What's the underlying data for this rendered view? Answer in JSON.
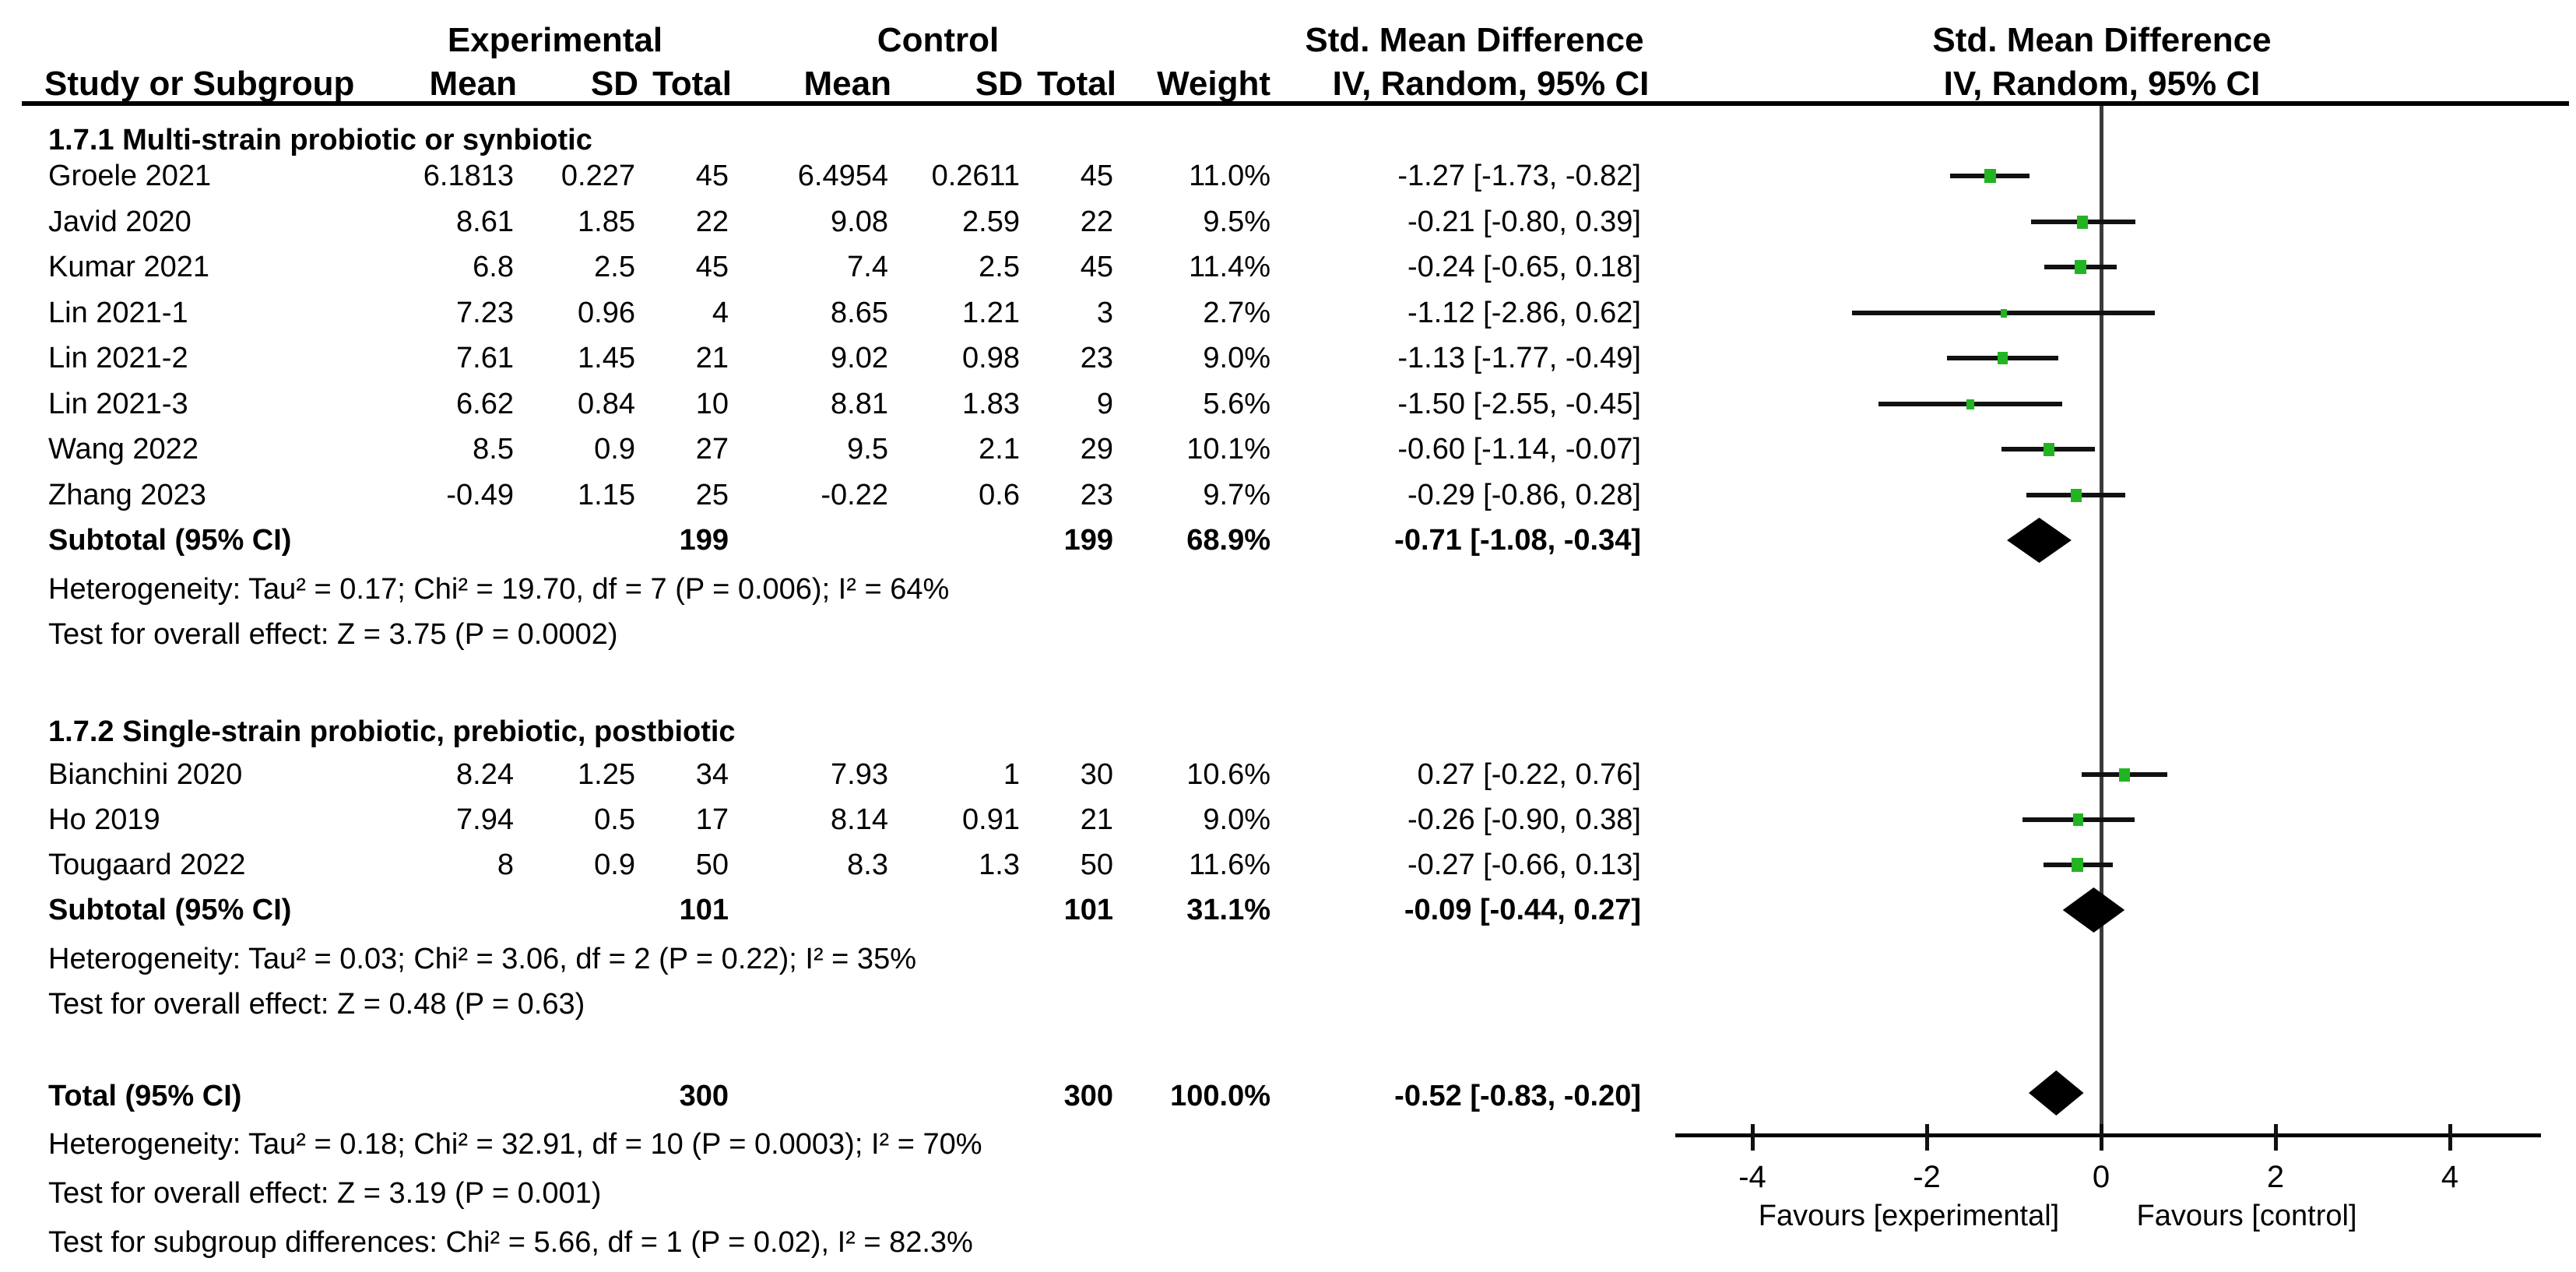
{
  "colors": {
    "background": "#ffffff",
    "text": "#000000",
    "marker_green": "#22b422",
    "diamond_black": "#000000",
    "ci_line": "#111111",
    "zero_line": "#3a3a3a"
  },
  "headers": {
    "experimental": "Experimental",
    "control": "Control",
    "smd_left": "Std. Mean Difference",
    "smd_right": "Std. Mean Difference",
    "study": "Study or Subgroup",
    "mean": "Mean",
    "sd": "SD",
    "total": "Total",
    "mean2": "Mean",
    "sd2": "SD",
    "total2": "Total",
    "weight": "Weight",
    "method_left": "IV, Random, 95% CI",
    "method_right": "IV, Random, 95% CI"
  },
  "chart_data": {
    "type": "forest",
    "effect_measure": "Std. Mean Difference (IV, Random, 95% CI)",
    "xlim": [
      -4.85,
      5.05
    ],
    "axis": {
      "tick_values": [
        -4,
        -2,
        0,
        2,
        4
      ],
      "ticks": [
        "-4",
        "-2",
        "0",
        "2",
        "4"
      ],
      "favours_left": "Favours [experimental]",
      "favours_right": "Favours [control]"
    },
    "groups": [
      {
        "label": "1.7.1 Multi-strain probiotic or synbiotic",
        "studies": [
          {
            "name": "Groele 2021",
            "exp_mean": "6.1813",
            "exp_sd": "0.227",
            "exp_total": "45",
            "ctrl_mean": "6.4954",
            "ctrl_sd": "0.2611",
            "ctrl_total": "45",
            "weight": "11.0%",
            "weight_val": 11.0,
            "ci_text": "-1.27 [-1.73, -0.82]",
            "smd": -1.27,
            "lo": -1.73,
            "hi": -0.82
          },
          {
            "name": "Javid 2020",
            "exp_mean": "8.61",
            "exp_sd": "1.85",
            "exp_total": "22",
            "ctrl_mean": "9.08",
            "ctrl_sd": "2.59",
            "ctrl_total": "22",
            "weight": "9.5%",
            "weight_val": 9.5,
            "ci_text": "-0.21 [-0.80, 0.39]",
            "smd": -0.21,
            "lo": -0.8,
            "hi": 0.39
          },
          {
            "name": "Kumar 2021",
            "exp_mean": "6.8",
            "exp_sd": "2.5",
            "exp_total": "45",
            "ctrl_mean": "7.4",
            "ctrl_sd": "2.5",
            "ctrl_total": "45",
            "weight": "11.4%",
            "weight_val": 11.4,
            "ci_text": "-0.24 [-0.65, 0.18]",
            "smd": -0.24,
            "lo": -0.65,
            "hi": 0.18
          },
          {
            "name": "Lin 2021-1",
            "exp_mean": "7.23",
            "exp_sd": "0.96",
            "exp_total": "4",
            "ctrl_mean": "8.65",
            "ctrl_sd": "1.21",
            "ctrl_total": "3",
            "weight": "2.7%",
            "weight_val": 2.7,
            "ci_text": "-1.12 [-2.86, 0.62]",
            "smd": -1.12,
            "lo": -2.86,
            "hi": 0.62
          },
          {
            "name": "Lin 2021-2",
            "exp_mean": "7.61",
            "exp_sd": "1.45",
            "exp_total": "21",
            "ctrl_mean": "9.02",
            "ctrl_sd": "0.98",
            "ctrl_total": "23",
            "weight": "9.0%",
            "weight_val": 9.0,
            "ci_text": "-1.13 [-1.77, -0.49]",
            "smd": -1.13,
            "lo": -1.77,
            "hi": -0.49
          },
          {
            "name": "Lin 2021-3",
            "exp_mean": "6.62",
            "exp_sd": "0.84",
            "exp_total": "10",
            "ctrl_mean": "8.81",
            "ctrl_sd": "1.83",
            "ctrl_total": "9",
            "weight": "5.6%",
            "weight_val": 5.6,
            "ci_text": "-1.50 [-2.55, -0.45]",
            "smd": -1.5,
            "lo": -2.55,
            "hi": -0.45
          },
          {
            "name": "Wang 2022",
            "exp_mean": "8.5",
            "exp_sd": "0.9",
            "exp_total": "27",
            "ctrl_mean": "9.5",
            "ctrl_sd": "2.1",
            "ctrl_total": "29",
            "weight": "10.1%",
            "weight_val": 10.1,
            "ci_text": "-0.60 [-1.14, -0.07]",
            "smd": -0.6,
            "lo": -1.14,
            "hi": -0.07
          },
          {
            "name": "Zhang 2023",
            "exp_mean": "-0.49",
            "exp_sd": "1.15",
            "exp_total": "25",
            "ctrl_mean": "-0.22",
            "ctrl_sd": "0.6",
            "ctrl_total": "23",
            "weight": "9.7%",
            "weight_val": 9.7,
            "ci_text": "-0.29 [-0.86, 0.28]",
            "smd": -0.29,
            "lo": -0.86,
            "hi": 0.28
          }
        ],
        "subtotal": {
          "label": "Subtotal (95% CI)",
          "exp_total": "199",
          "ctrl_total": "199",
          "weight": "68.9%",
          "ci_text": "-0.71 [-1.08, -0.34]",
          "smd": -0.71,
          "lo": -1.08,
          "hi": -0.34
        },
        "heterogeneity": "Heterogeneity: Tau² = 0.17; Chi² = 19.70, df = 7 (P = 0.006); I² = 64%",
        "overall_effect": "Test for overall effect: Z = 3.75 (P = 0.0002)"
      },
      {
        "label": "1.7.2 Single-strain probiotic, prebiotic, postbiotic",
        "studies": [
          {
            "name": "Bianchini 2020",
            "exp_mean": "8.24",
            "exp_sd": "1.25",
            "exp_total": "34",
            "ctrl_mean": "7.93",
            "ctrl_sd": "1",
            "ctrl_total": "30",
            "weight": "10.6%",
            "weight_val": 10.6,
            "ci_text": "0.27 [-0.22, 0.76]",
            "smd": 0.27,
            "lo": -0.22,
            "hi": 0.76
          },
          {
            "name": "Ho 2019",
            "exp_mean": "7.94",
            "exp_sd": "0.5",
            "exp_total": "17",
            "ctrl_mean": "8.14",
            "ctrl_sd": "0.91",
            "ctrl_total": "21",
            "weight": "9.0%",
            "weight_val": 9.0,
            "ci_text": "-0.26 [-0.90, 0.38]",
            "smd": -0.26,
            "lo": -0.9,
            "hi": 0.38
          },
          {
            "name": "Tougaard 2022",
            "exp_mean": "8",
            "exp_sd": "0.9",
            "exp_total": "50",
            "ctrl_mean": "8.3",
            "ctrl_sd": "1.3",
            "ctrl_total": "50",
            "weight": "11.6%",
            "weight_val": 11.6,
            "ci_text": "-0.27 [-0.66, 0.13]",
            "smd": -0.27,
            "lo": -0.66,
            "hi": 0.13
          }
        ],
        "subtotal": {
          "label": "Subtotal (95% CI)",
          "exp_total": "101",
          "ctrl_total": "101",
          "weight": "31.1%",
          "ci_text": "-0.09 [-0.44, 0.27]",
          "smd": -0.09,
          "lo": -0.44,
          "hi": 0.27
        },
        "heterogeneity": "Heterogeneity: Tau² = 0.03; Chi² = 3.06, df = 2 (P = 0.22); I² = 35%",
        "overall_effect": "Test for overall effect: Z = 0.48 (P = 0.63)"
      }
    ],
    "total": {
      "label": "Total (95% CI)",
      "exp_total": "300",
      "ctrl_total": "300",
      "weight": "100.0%",
      "ci_text": "-0.52 [-0.83, -0.20]",
      "smd": -0.52,
      "lo": -0.83,
      "hi": -0.2
    },
    "total_heterogeneity": "Heterogeneity: Tau² = 0.18; Chi² = 32.91, df = 10 (P = 0.0003); I² = 70%",
    "total_overall_effect": "Test for overall effect: Z = 3.19 (P = 0.001)",
    "subgroup_differences": "Test for subgroup differences: Chi² = 5.66, df = 1 (P = 0.02), I² = 82.3%"
  }
}
